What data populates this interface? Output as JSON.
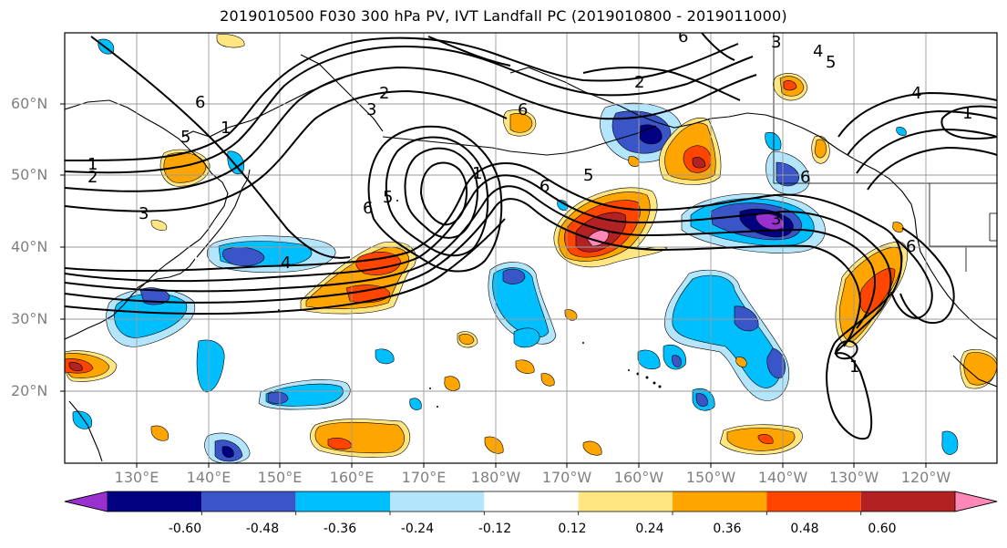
{
  "title": "2019010500 F030 300 hPa PV, IVT Landfall PC (2019010800 - 2019011000)",
  "lat_labels": [
    "60°N",
    "50°N",
    "40°N",
    "30°N",
    "20°N"
  ],
  "lon_labels": [
    "130°E",
    "140°E",
    "150°E",
    "160°E",
    "170°E",
    "180°W",
    "170°W",
    "160°W",
    "150°W",
    "140°W",
    "130°W",
    "120°W"
  ],
  "colorbar": {
    "levels": [
      "-0.60",
      "-0.48",
      "-0.36",
      "-0.24",
      "-0.12",
      "0.12",
      "0.24",
      "0.36",
      "0.48",
      "0.60"
    ],
    "colors": [
      "#9b30d0",
      "#000080",
      "#3a55c8",
      "#00bfff",
      "#b3e5fc",
      "#ffffff",
      "#ffe680",
      "#ffa500",
      "#ff4500",
      "#b22222",
      "#ff88b8"
    ]
  },
  "contour_labels": [
    "1",
    "2",
    "3",
    "4",
    "5",
    "6",
    "1",
    "2",
    "3",
    "5",
    "6",
    "6",
    "5",
    "6",
    "1",
    "6",
    "2",
    "3",
    "4",
    "5",
    "1",
    "3",
    "6",
    "6",
    "1",
    "4"
  ]
}
